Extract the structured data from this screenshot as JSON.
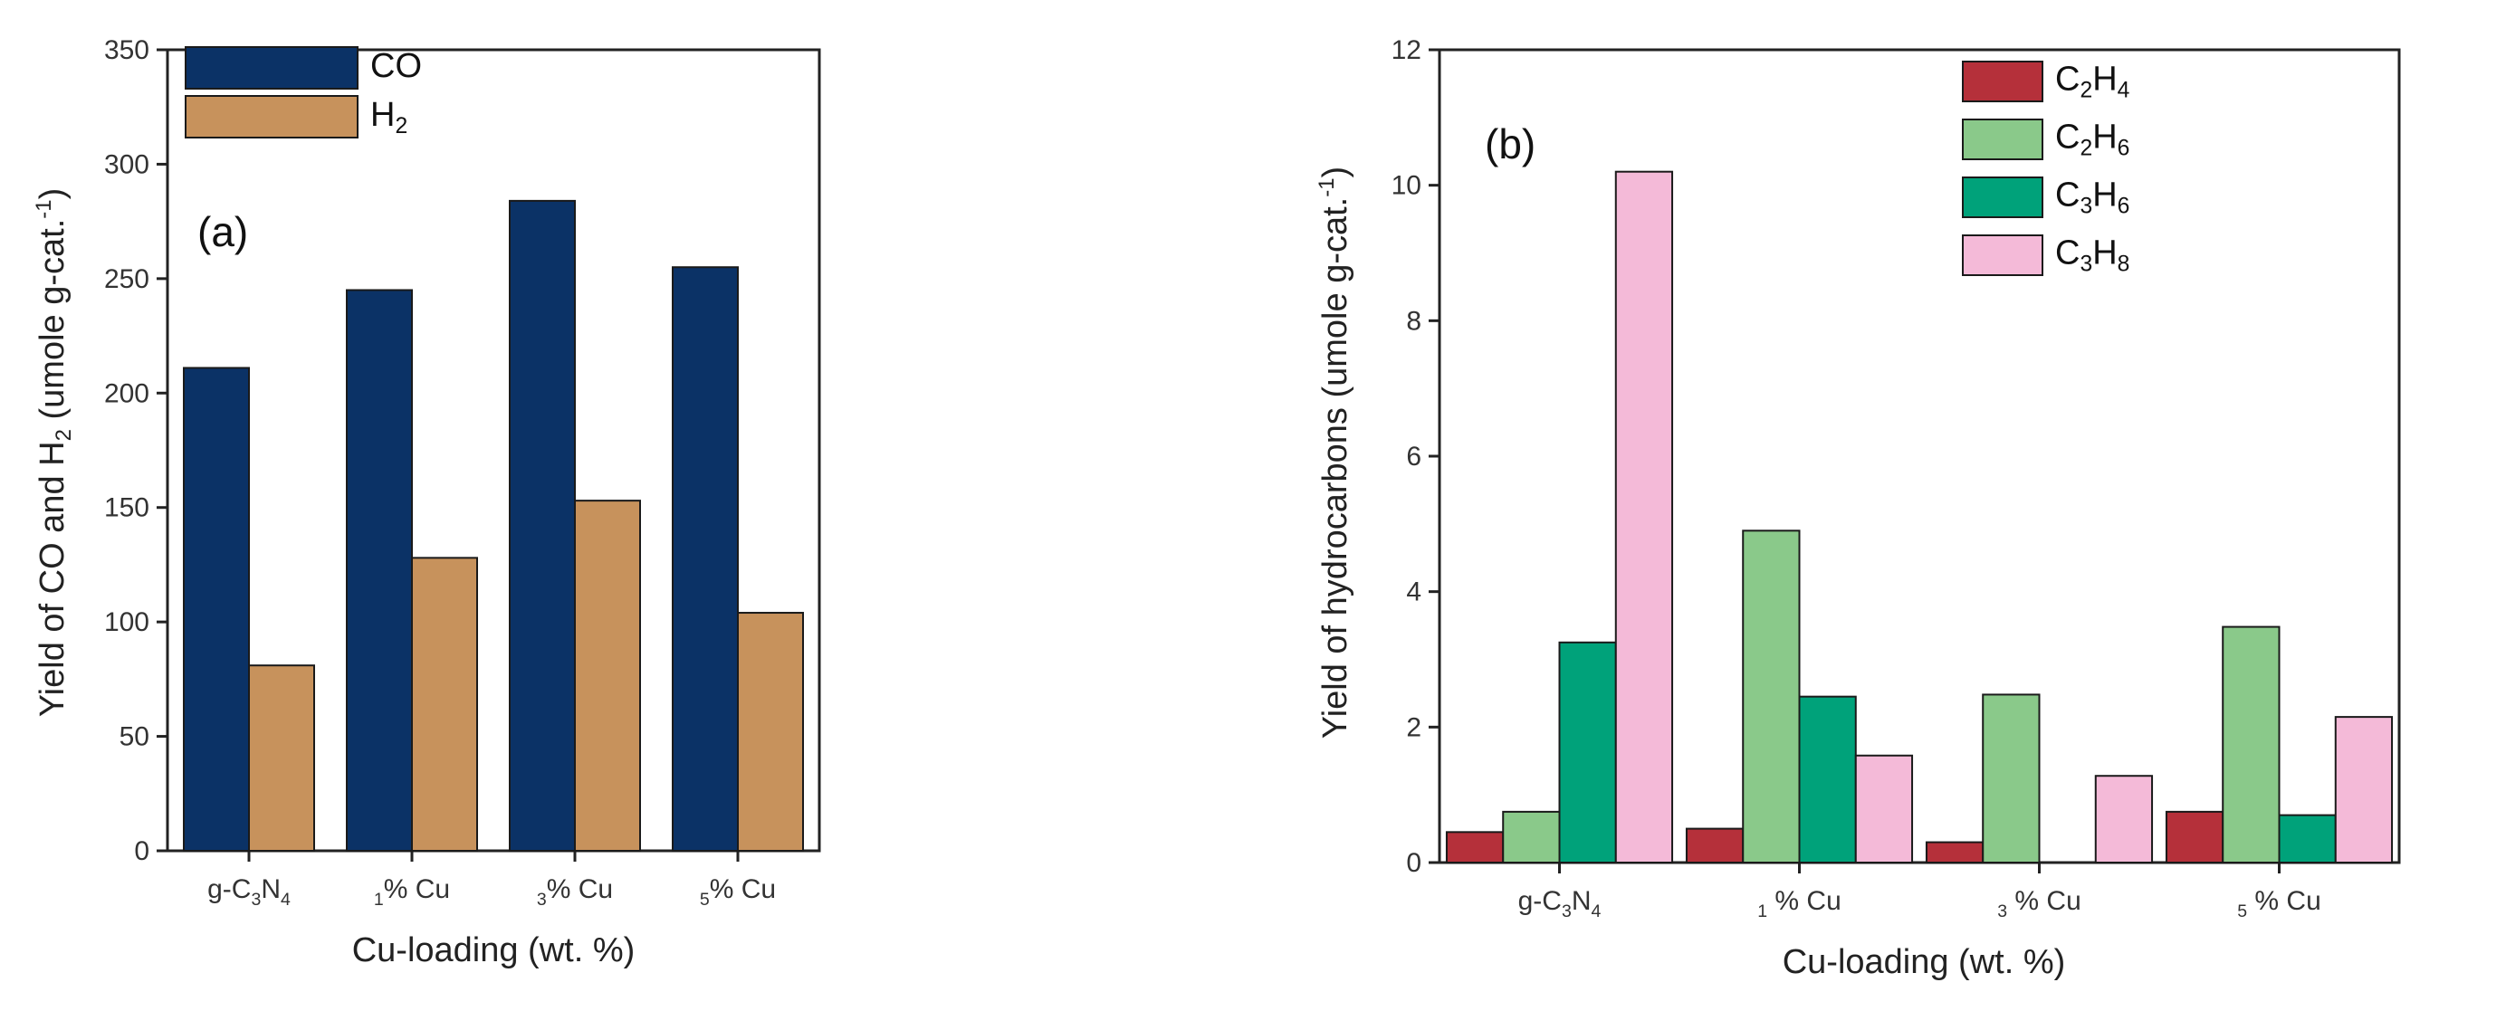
{
  "chart_data": [
    {
      "type": "bar",
      "panel_label": "(a)",
      "categories": [
        "g-C3N4",
        "1% Cu",
        "3% Cu",
        "5% Cu"
      ],
      "series": [
        {
          "name": "CO",
          "values": [
            211,
            245,
            284,
            255
          ],
          "color": "#0b3266"
        },
        {
          "name": "H2",
          "values": [
            81,
            128,
            153,
            104
          ],
          "color": "#c7925c"
        }
      ],
      "xlabel": "Cu-loading (wt. %)",
      "ylabel": "Yield of CO and H2 (umole g-cat.-1)",
      "ylim": [
        0,
        350
      ],
      "yticks": [
        0,
        50,
        100,
        150,
        200,
        250,
        300,
        350
      ],
      "legend": "top-left"
    },
    {
      "type": "bar",
      "panel_label": "(b)",
      "categories": [
        "g-C3N4",
        "1 % Cu",
        "3 % Cu",
        "5 % Cu"
      ],
      "series": [
        {
          "name": "C2H4",
          "values": [
            0.45,
            0.5,
            0.3,
            0.75
          ],
          "color": "#b5303a"
        },
        {
          "name": "C2H6",
          "values": [
            0.75,
            4.9,
            2.48,
            3.48
          ],
          "color": "#8ac98a"
        },
        {
          "name": "C3H6",
          "values": [
            3.25,
            2.45,
            0,
            0.7
          ],
          "color": "#00a27a"
        },
        {
          "name": "C3H8",
          "values": [
            10.2,
            1.58,
            1.28,
            2.15
          ],
          "color": "#f4bad8"
        }
      ],
      "xlabel": "Cu-loading (wt. %)",
      "ylabel": "Yield of hydrocarbons (umole g-cat.-1)",
      "ylim": [
        0,
        12
      ],
      "yticks": [
        0,
        2,
        4,
        6,
        8,
        10,
        12
      ],
      "legend": "top-right"
    }
  ]
}
